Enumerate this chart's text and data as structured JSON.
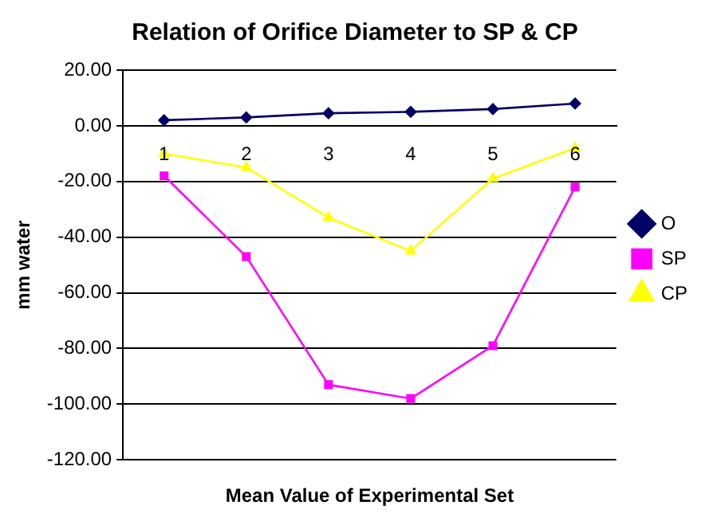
{
  "chart_data": {
    "type": "line",
    "title": "Relation of Orifice Diameter to SP & CP",
    "xlabel": "Mean Value of Experimental Set",
    "ylabel": "mm water",
    "categories": [
      "1",
      "2",
      "3",
      "4",
      "5",
      "6"
    ],
    "series": [
      {
        "name": "O",
        "color": "#000066",
        "marker": "diamond",
        "values": [
          2,
          3,
          4.5,
          5,
          6,
          8
        ]
      },
      {
        "name": "SP",
        "color": "#ff00ff",
        "marker": "square",
        "values": [
          -18,
          -47,
          -93,
          -98,
          -79,
          -22
        ]
      },
      {
        "name": "CP",
        "color": "#ffff00",
        "marker": "triangle",
        "values": [
          -10,
          -15,
          -33,
          -45,
          -19,
          -8
        ]
      }
    ],
    "ylim": [
      -120,
      20
    ],
    "yticks": [
      {
        "value": 20,
        "label": "20.00"
      },
      {
        "value": 0,
        "label": "0.00"
      },
      {
        "value": -20,
        "label": "-20.00"
      },
      {
        "value": -40,
        "label": "-40.00"
      },
      {
        "value": -60,
        "label": "-60.00"
      },
      {
        "value": -80,
        "label": "-80.00"
      },
      {
        "value": -100,
        "label": "-100.00"
      },
      {
        "value": -120,
        "label": "-120.00"
      }
    ],
    "grid": "y",
    "legend": "right"
  }
}
